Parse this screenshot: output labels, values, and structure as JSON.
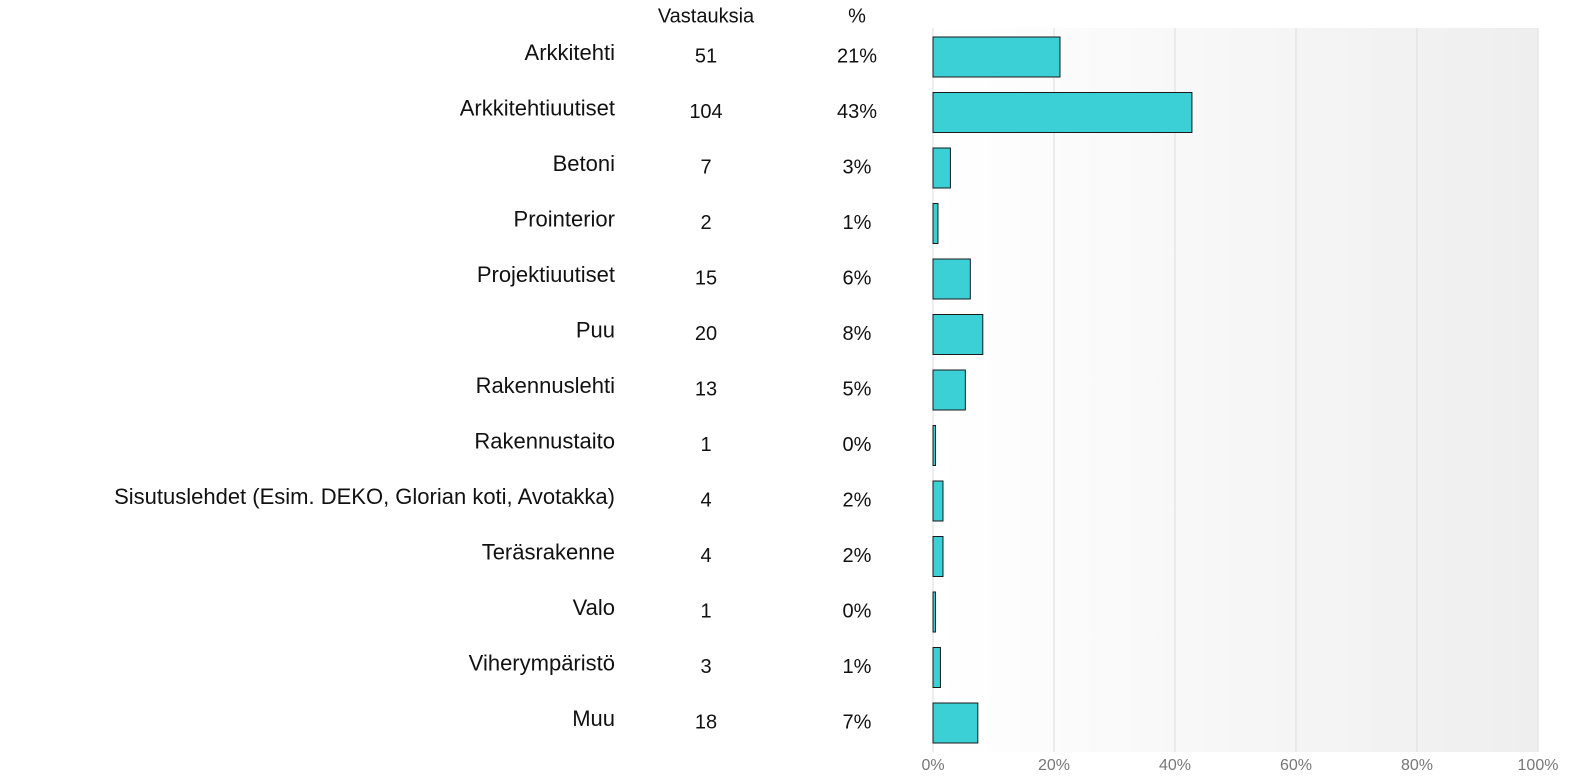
{
  "chart_data": {
    "type": "bar",
    "orientation": "horizontal",
    "count_header": "Vastauksia",
    "percent_header": "%",
    "categories": [
      "Arkkitehti",
      "Arkkitehtiuutiset",
      "Betoni",
      "Prointerior",
      "Projektiuutiset",
      "Puu",
      "Rakennuslehti",
      "Rakennustaito",
      "Sisutuslehdet (Esim. DEKO, Glorian koti, Avotakka)",
      "Teräsrakenne",
      "Valo",
      "Viherympäristö",
      "Muu"
    ],
    "counts": [
      51,
      104,
      7,
      2,
      15,
      20,
      13,
      1,
      4,
      4,
      1,
      3,
      18
    ],
    "values": [
      20.99,
      42.8,
      2.88,
      0.82,
      6.17,
      8.23,
      5.35,
      0.41,
      1.65,
      1.65,
      0.41,
      1.23,
      7.41
    ],
    "value_labels": [
      "21%",
      "43%",
      "3%",
      "1%",
      "6%",
      "8%",
      "5%",
      "0%",
      "2%",
      "2%",
      "0%",
      "1%",
      "7%"
    ],
    "color": "#3bcfd6",
    "xlim": [
      0,
      100
    ],
    "xticks": [
      {
        "value": 0,
        "label": "0%"
      },
      {
        "value": 20,
        "label": "20%"
      },
      {
        "value": 40,
        "label": "40%"
      },
      {
        "value": 60,
        "label": "60%"
      },
      {
        "value": 80,
        "label": "80%"
      },
      {
        "value": 100,
        "label": "100%"
      }
    ],
    "grid": true
  }
}
